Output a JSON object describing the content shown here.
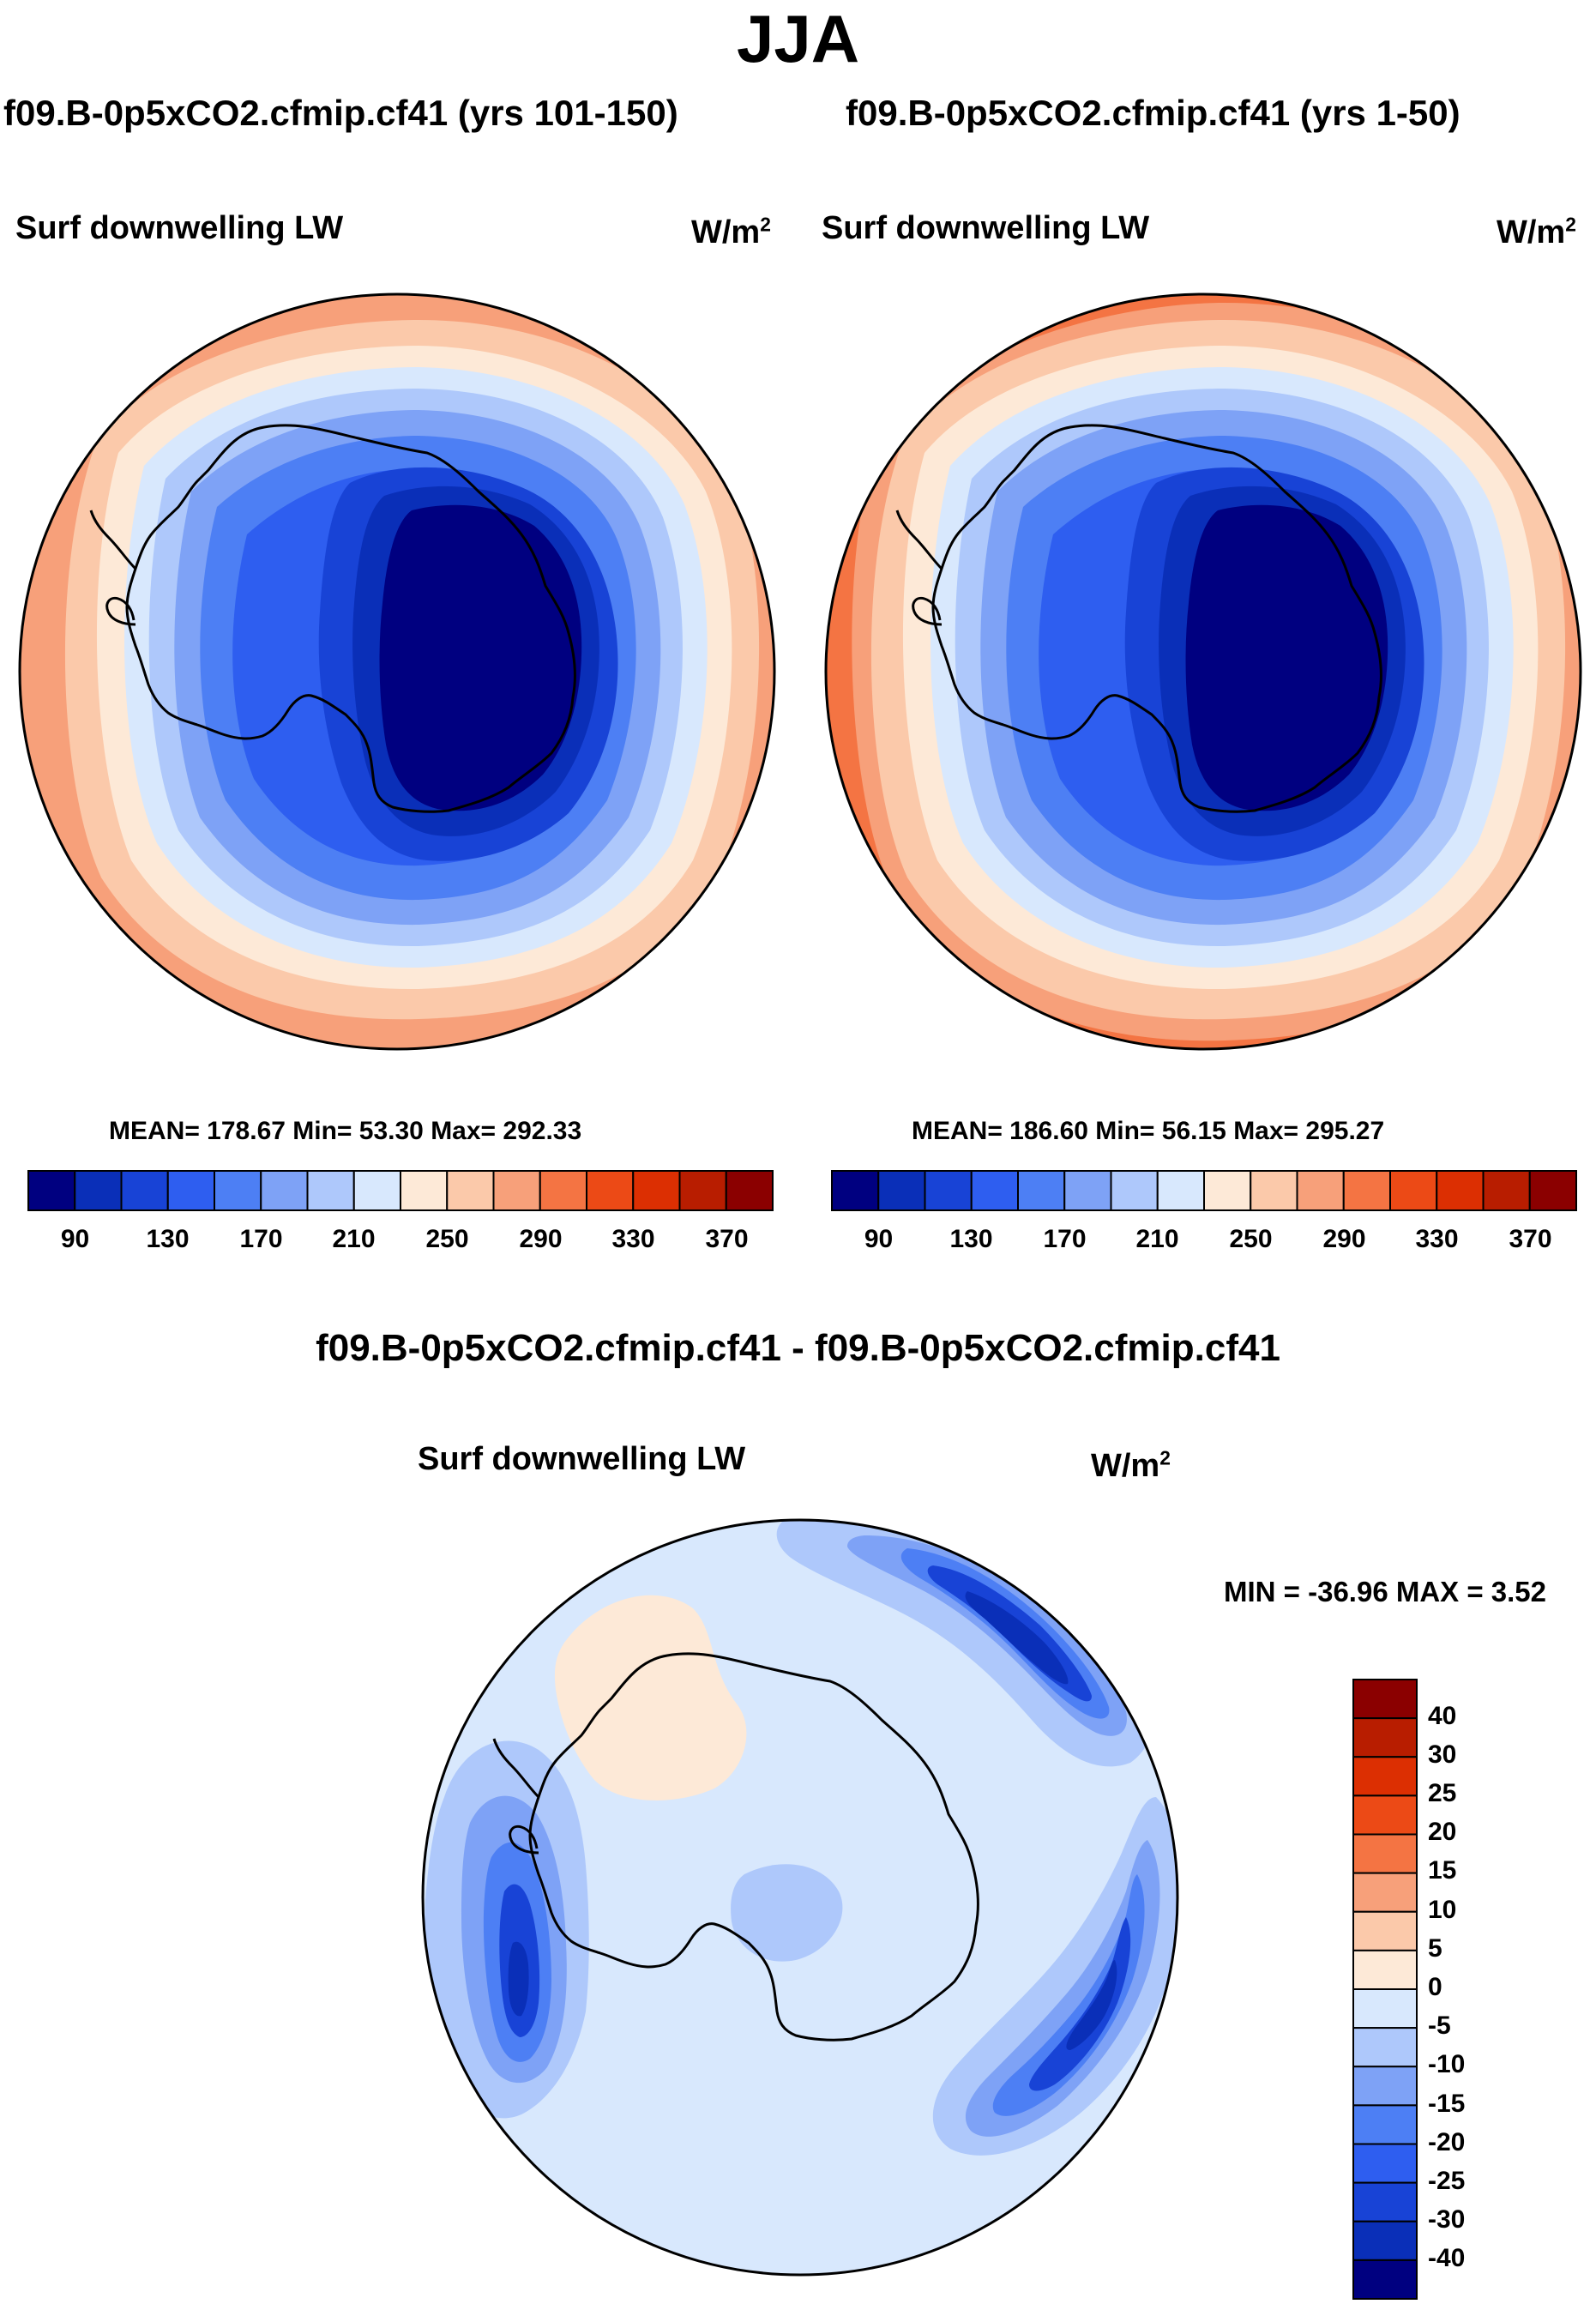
{
  "season": "JJA",
  "panels": [
    {
      "case_title": "f09.B-0p5xCO2.cfmip.cf41 (yrs 101-150)",
      "variable": "Surf downwelling LW",
      "units_base": "W/m",
      "units_exp": "2",
      "stats": "MEAN= 178.67  Min=  53.30  Max= 292.33"
    },
    {
      "case_title": "f09.B-0p5xCO2.cfmip.cf41 (yrs 1-50)",
      "variable": "Surf downwelling LW",
      "units_base": "W/m",
      "units_exp": "2",
      "stats": "MEAN= 186.60  Min=  56.15  Max= 295.27"
    }
  ],
  "field_colorbar": {
    "colors": [
      "#000080",
      "#0a2fb8",
      "#1843d6",
      "#2e5ef0",
      "#4d7ff4",
      "#7ea2f6",
      "#aec8fb",
      "#d8e8fd",
      "#fde9d7",
      "#fbc9aa",
      "#f7a07a",
      "#f47443",
      "#ec4a16",
      "#dc2f02",
      "#b81d00",
      "#8b0000"
    ],
    "tick_labels": [
      "90",
      "130",
      "170",
      "210",
      "250",
      "290",
      "330",
      "370"
    ]
  },
  "diff": {
    "title": "f09.B-0p5xCO2.cfmip.cf41 - f09.B-0p5xCO2.cfmip.cf41",
    "variable": "Surf downwelling LW",
    "units_base": "W/m",
    "units_exp": "2",
    "stats": "MIN = -36.96 MAX =   3.52"
  },
  "diff_colorbar": {
    "colors": [
      "#8b0000",
      "#b81d00",
      "#dc2f02",
      "#ec4a16",
      "#f47443",
      "#f7a07a",
      "#fbc9aa",
      "#fde9d7",
      "#d8e8fd",
      "#aec8fb",
      "#7ea2f6",
      "#4d7ff4",
      "#2e5ef0",
      "#1843d6",
      "#0a2fb8",
      "#000080"
    ],
    "tick_labels": [
      "40",
      "30",
      "25",
      "20",
      "15",
      "10",
      "5",
      "0",
      "-5",
      "-10",
      "-15",
      "-20",
      "-25",
      "-30",
      "-40"
    ]
  }
}
